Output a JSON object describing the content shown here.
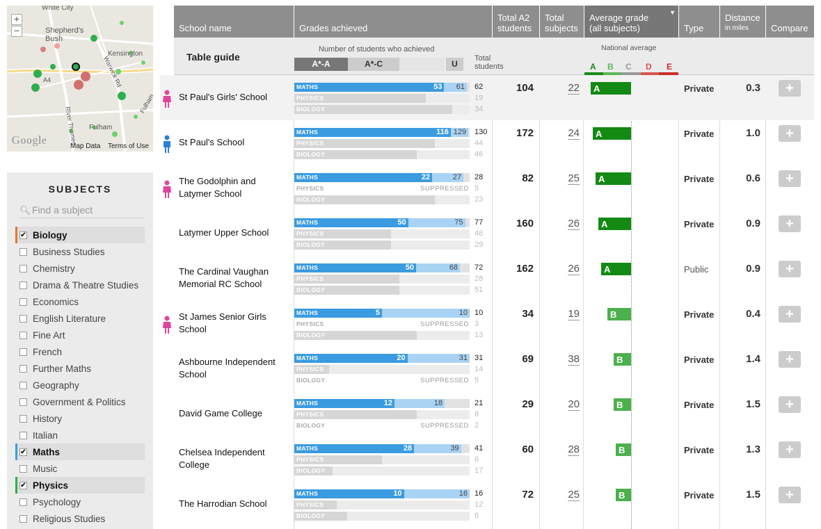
{
  "map": {
    "labels": [
      "White City",
      "Shepherd's Bush",
      "Kensington",
      "A4",
      "Warwick Rd",
      "River Thames",
      "Fulham",
      "Fulham"
    ],
    "zoom_in": "+",
    "zoom_out": "−",
    "logo": "Google",
    "map_data": "Map Data",
    "terms": "Terms of Use"
  },
  "subjects": {
    "title": "SUBJECTS",
    "search_placeholder": "Find a subject",
    "items": [
      {
        "label": "Biology",
        "checked": true,
        "color": "#e07a2f"
      },
      {
        "label": "Business Studies",
        "checked": false
      },
      {
        "label": "Chemistry",
        "checked": false
      },
      {
        "label": "Drama & Theatre Studies",
        "checked": false
      },
      {
        "label": "Economics",
        "checked": false
      },
      {
        "label": "English Literature",
        "checked": false
      },
      {
        "label": "Fine Art",
        "checked": false
      },
      {
        "label": "French",
        "checked": false
      },
      {
        "label": "Further Maths",
        "checked": false
      },
      {
        "label": "Geography",
        "checked": false
      },
      {
        "label": "Government & Politics",
        "checked": false
      },
      {
        "label": "History",
        "checked": false
      },
      {
        "label": "Italian",
        "checked": false
      },
      {
        "label": "Maths",
        "checked": true,
        "color": "#3a9be0"
      },
      {
        "label": "Music",
        "checked": false
      },
      {
        "label": "Physics",
        "checked": true,
        "color": "#2fae4e"
      },
      {
        "label": "Psychology",
        "checked": false
      },
      {
        "label": "Religious Studies",
        "checked": false
      }
    ]
  },
  "header": {
    "school_name": "School name",
    "grades": "Grades achieved",
    "total_a2_1": "Total A2",
    "total_a2_2": "students",
    "total_subj_1": "Total",
    "total_subj_2": "subjects",
    "avg_1": "Average grade",
    "avg_2": "(all subjects)",
    "type": "Type",
    "dist_1": "Distance",
    "dist_2": "in miles",
    "compare": "Compare"
  },
  "guide": {
    "title": "Table guide",
    "number_label": "Number of students who achieved",
    "seg1": "A*-A",
    "seg2": "A*-C",
    "seg3": "U",
    "total_1": "Total",
    "total_2": "students",
    "national": "National average",
    "letters": [
      "A",
      "B",
      "C",
      "D",
      "E"
    ],
    "letter_colors": [
      "#1a8a1a",
      "#5cb85c",
      "#999999",
      "#d9534f",
      "#c9302c"
    ]
  },
  "grade_colors": {
    "A": "#138a13",
    "B": "#4cb04c"
  },
  "schools": [
    {
      "name": "St Paul's Girls' School",
      "icon": "girl",
      "total": "104",
      "subjects": "22",
      "grade": "A",
      "grade_pos": 0.04,
      "type": "Private",
      "dist": "0.3",
      "subs": [
        {
          "label": "MATHS",
          "a": 53,
          "c": 61,
          "t": 62
        },
        {
          "label": "PHYSICS",
          "t": 19,
          "fill": 0.75
        },
        {
          "label": "BIOLOGY",
          "t": 34,
          "fill": 0.9
        }
      ]
    },
    {
      "name": "St Paul's School",
      "icon": "boy",
      "total": "172",
      "subjects": "24",
      "grade": "A",
      "grade_pos": 0.08,
      "type": "Private",
      "dist": "1.0",
      "subs": [
        {
          "label": "MATHS",
          "a": 116,
          "c": 129,
          "t": 130
        },
        {
          "label": "PHYSICS",
          "t": 44,
          "fill": 0.8
        },
        {
          "label": "BIOLOGY",
          "t": 46,
          "fill": 0.7
        }
      ]
    },
    {
      "name": "The Godolphin and Latymer School",
      "icon": "girl",
      "total": "82",
      "subjects": "25",
      "grade": "A",
      "grade_pos": 0.14,
      "type": "Private",
      "dist": "0.6",
      "subs": [
        {
          "label": "MATHS",
          "a": 22,
          "c": 27,
          "t": 28
        },
        {
          "label": "PHYSICS",
          "t": 5,
          "suppressed": "SUPPRESSED"
        },
        {
          "label": "BIOLOGY",
          "t": 23,
          "fill": 0.8
        }
      ]
    },
    {
      "name": "Latymer Upper School",
      "icon": "",
      "total": "160",
      "subjects": "26",
      "grade": "A",
      "grade_pos": 0.2,
      "type": "Private",
      "dist": "0.9",
      "subs": [
        {
          "label": "MATHS",
          "a": 50,
          "c": 75,
          "t": 77
        },
        {
          "label": "PHYSICS",
          "t": 46,
          "fill": 0.55
        },
        {
          "label": "BIOLOGY",
          "t": 29,
          "fill": 0.55
        }
      ]
    },
    {
      "name": "The Cardinal Vaughan Memorial RC School",
      "icon": "",
      "total": "162",
      "subjects": "26",
      "grade": "A",
      "grade_pos": 0.26,
      "type": "Public",
      "dist": "0.9",
      "subs": [
        {
          "label": "MATHS",
          "a": 50,
          "c": 68,
          "t": 72
        },
        {
          "label": "PHYSICS",
          "t": 28,
          "fill": 0.6
        },
        {
          "label": "BIOLOGY",
          "t": 51,
          "fill": 0.6
        }
      ]
    },
    {
      "name": "St James Senior Girls School",
      "icon": "girl",
      "total": "34",
      "subjects": "19",
      "grade": "B",
      "grade_pos": 0.38,
      "type": "Private",
      "dist": "0.4",
      "subs": [
        {
          "label": "MATHS",
          "a": 5,
          "c": 10,
          "t": 10
        },
        {
          "label": "PHYSICS",
          "t": 3,
          "suppressed": "SUPPRESSED"
        },
        {
          "label": "BIOLOGY",
          "t": 13,
          "fill": 0.7
        }
      ]
    },
    {
      "name": "Ashbourne Independent School",
      "icon": "",
      "total": "69",
      "subjects": "38",
      "grade": "B",
      "grade_pos": 0.52,
      "type": "Private",
      "dist": "1.4",
      "subs": [
        {
          "label": "MATHS",
          "a": 20,
          "c": 31,
          "t": 31
        },
        {
          "label": "PHYSICS",
          "t": 14,
          "fill": 0.2
        },
        {
          "label": "BIOLOGY",
          "t": 5,
          "suppressed": "SUPPRESSED"
        }
      ]
    },
    {
      "name": "David Game College",
      "icon": "",
      "total": "29",
      "subjects": "20",
      "grade": "B",
      "grade_pos": 0.52,
      "type": "Private",
      "dist": "1.5",
      "subs": [
        {
          "label": "MATHS",
          "a": 12,
          "c": 18,
          "t": 21
        },
        {
          "label": "PHYSICS",
          "t": 8,
          "fill": 0.7
        },
        {
          "label": "BIOLOGY",
          "t": 2,
          "suppressed": "SUPPRESSED"
        }
      ]
    },
    {
      "name": "Chelsea Independent College",
      "icon": "",
      "total": "60",
      "subjects": "28",
      "grade": "B",
      "grade_pos": 0.56,
      "type": "Private",
      "dist": "1.3",
      "subs": [
        {
          "label": "MATHS",
          "a": 28,
          "c": 39,
          "t": 41
        },
        {
          "label": "PHYSICS",
          "t": 6,
          "fill": 0.5
        },
        {
          "label": "BIOLOGY",
          "t": 17,
          "fill": 0.22
        }
      ]
    },
    {
      "name": "The Harrodian School",
      "icon": "",
      "total": "72",
      "subjects": "25",
      "grade": "B",
      "grade_pos": 0.56,
      "type": "Private",
      "dist": "1.5",
      "subs": [
        {
          "label": "MATHS",
          "a": 10,
          "c": 16,
          "t": 16
        },
        {
          "label": "PHYSICS",
          "t": 12,
          "fill": 0.24
        },
        {
          "label": "BIOLOGY",
          "t": 6,
          "fill": 0.3
        }
      ]
    }
  ],
  "compare_label": "+"
}
